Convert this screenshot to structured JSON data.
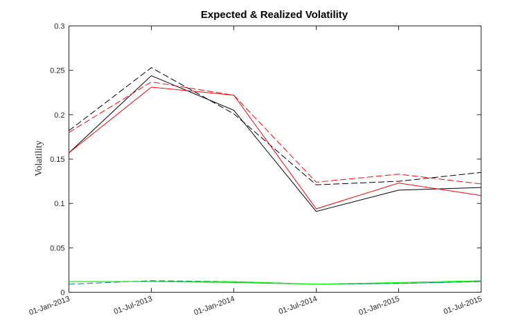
{
  "chart_data": {
    "type": "line",
    "title": "Expected & Realized Volatility",
    "xlabel": "",
    "ylabel": "Volatility",
    "categories": [
      "01-Jan-2013",
      "01-Jul-2013",
      "01-Jan-2014",
      "01-Jul-2014",
      "01-Jan-2015",
      "01-Jul-2015"
    ],
    "ylim": [
      0,
      0.3
    ],
    "yticks": [
      "0",
      "0.05",
      "0.1",
      "0.15",
      "0.2",
      "0.25",
      "0.3"
    ],
    "grid": false,
    "legend": "none",
    "series": [
      {
        "color": "#000000",
        "style": "solid",
        "values": [
          0.157,
          0.244,
          0.205,
          0.091,
          0.115,
          0.118
        ]
      },
      {
        "color": "#000000",
        "style": "dashed",
        "values": [
          0.182,
          0.253,
          0.201,
          0.121,
          0.125,
          0.135
        ]
      },
      {
        "color": "#ff0000",
        "style": "solid",
        "values": [
          0.157,
          0.231,
          0.222,
          0.094,
          0.123,
          0.109
        ]
      },
      {
        "color": "#ff0000",
        "style": "dashed",
        "values": [
          0.18,
          0.237,
          0.222,
          0.124,
          0.133,
          0.122
        ]
      },
      {
        "color": "#00c000",
        "style": "solid",
        "values": [
          0.012,
          0.012,
          0.011,
          0.009,
          0.01,
          0.012
        ]
      },
      {
        "color": "#008080",
        "style": "dashed",
        "values": [
          0.009,
          0.013,
          0.012,
          0.009,
          0.01,
          0.012
        ]
      },
      {
        "color": "#00ff00",
        "style": "solid",
        "values": [
          0.012,
          0.012,
          0.012,
          0.009,
          0.011,
          0.013
        ]
      }
    ]
  }
}
